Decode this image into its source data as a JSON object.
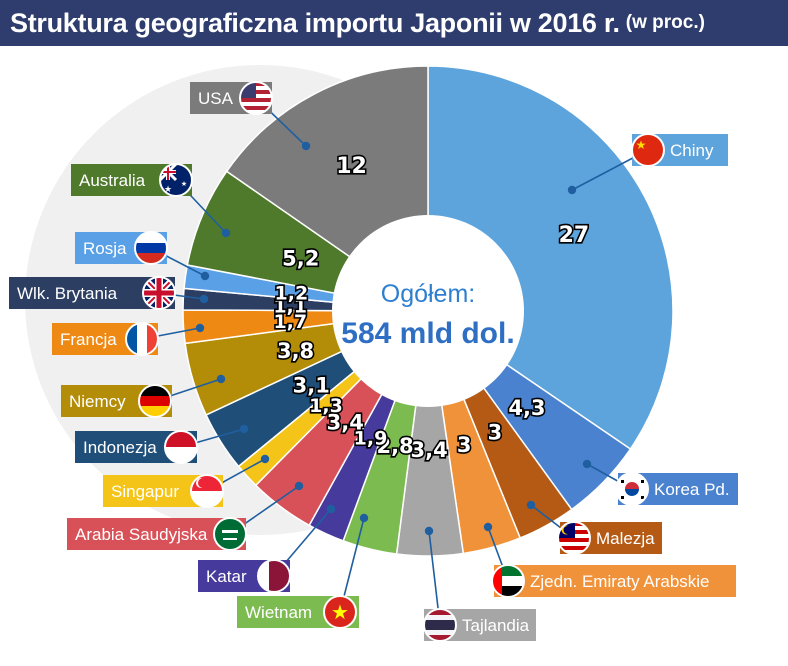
{
  "header": {
    "title": "Struktura geograficzna importu Japonii w 2016 r.",
    "unit": "(w  proc.)"
  },
  "chart_data": {
    "type": "pie",
    "center": {
      "title": "Ogółem:",
      "total": "584 mld dol."
    },
    "slices": [
      {
        "name": "Chiny",
        "value": 27,
        "label": "27",
        "color": "#5da4dc",
        "label_color": "#5da4dc",
        "flag": "china-flag-icon"
      },
      {
        "name": "Korea Pd.",
        "value": 4.3,
        "label": "4,3",
        "color": "#4a82d0",
        "label_color": "#4a82d0",
        "flag": "south-korea-flag-icon"
      },
      {
        "name": "Malezja",
        "value": 3,
        "label": "3",
        "color": "#b55a14",
        "label_color": "#b55a14",
        "flag": "malaysia-flag-icon"
      },
      {
        "name": "Zjedn. Emiraty Arabskie",
        "value": 3,
        "label": "3",
        "color": "#f0923a",
        "label_color": "#f0923a",
        "flag": "uae-flag-icon"
      },
      {
        "name": "Tajlandia",
        "value": 3.4,
        "label": "3,4",
        "color": "#a6a6a6",
        "label_color": "#a6a6a6",
        "flag": "thailand-flag-icon"
      },
      {
        "name": "Wietnam",
        "value": 2.8,
        "label": "2,8",
        "color": "#7cbb4f",
        "label_color": "#7cbb4f",
        "flag": "vietnam-flag-icon"
      },
      {
        "name": "Katar",
        "value": 1.9,
        "label": "1,9",
        "color": "#463b9c",
        "label_color": "#463b9c",
        "flag": "qatar-flag-icon"
      },
      {
        "name": "Arabia Saudyjska",
        "value": 3.4,
        "label": "3,4",
        "color": "#d95158",
        "label_color": "#d95158",
        "flag": "saudi-arabia-flag-icon"
      },
      {
        "name": "Singapur",
        "value": 1.3,
        "label": "1,3",
        "color": "#f4c518",
        "label_color": "#f4c518",
        "flag": "singapore-flag-icon"
      },
      {
        "name": "Indonezja",
        "value": 3.1,
        "label": "3,1",
        "color": "#1f4e79",
        "label_color": "#1f4e79",
        "flag": "indonesia-flag-icon"
      },
      {
        "name": "Niemcy",
        "value": 3.8,
        "label": "3,8",
        "color": "#b38c08",
        "label_color": "#b38c08",
        "flag": "germany-flag-icon"
      },
      {
        "name": "Francja",
        "value": 1.7,
        "label": "1,7",
        "color": "#ee8a14",
        "label_color": "#ee8a14",
        "flag": "france-flag-icon"
      },
      {
        "name": "Wlk. Brytania",
        "value": 1.1,
        "label": "1,1",
        "color": "#2c3e62",
        "label_color": "#2c3e62",
        "flag": "uk-flag-icon"
      },
      {
        "name": "Rosja",
        "value": 1.2,
        "label": "1,2",
        "color": "#5aa0e6",
        "label_color": "#5aa0e6",
        "flag": "russia-flag-icon"
      },
      {
        "name": "Australia",
        "value": 5.2,
        "label": "5,2",
        "color": "#4f7a2c",
        "label_color": "#4f7a2c",
        "flag": "australia-flag-icon"
      },
      {
        "name": "USA",
        "value": 12,
        "label": "12",
        "color": "#7b7b7b",
        "label_color": "#7b7b7b",
        "flag": "usa-flag-icon"
      }
    ]
  }
}
